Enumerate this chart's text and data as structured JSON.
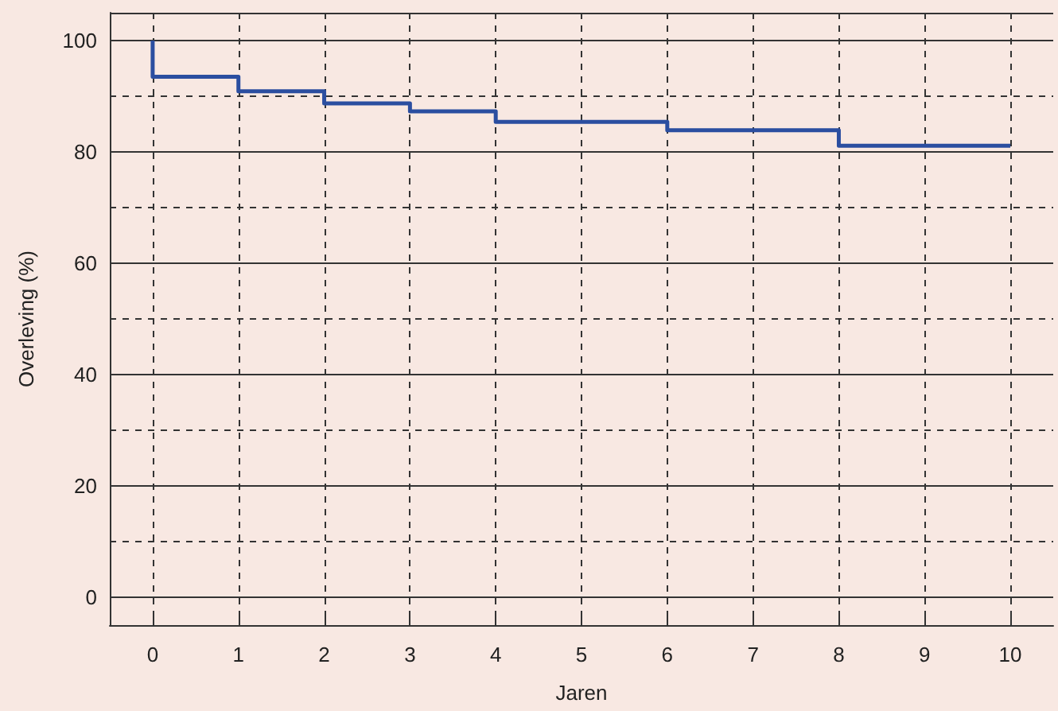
{
  "chart_data": {
    "type": "step",
    "xlabel": "Jaren",
    "ylabel": "Overleving (%)",
    "x": [
      0,
      0,
      1,
      2,
      3,
      4,
      6,
      8,
      10
    ],
    "values": [
      100,
      93.5,
      90.9,
      88.7,
      87.3,
      85.4,
      83.9,
      81.1,
      81.1
    ],
    "color": "#2b4ea0",
    "xlim": [
      -0.5,
      10.5
    ],
    "xticks": [
      0,
      1,
      2,
      3,
      4,
      5,
      6,
      7,
      8,
      9,
      10
    ],
    "ylim": [
      -5,
      105
    ],
    "yticks": [
      0,
      {
        "value": 10,
        "label": null
      },
      20,
      {
        "value": 30,
        "label": null
      },
      40,
      {
        "value": 50,
        "label": null
      },
      60,
      {
        "value": 70,
        "label": null
      },
      80,
      {
        "value": 90,
        "label": null
      },
      100
    ],
    "grid": true,
    "marker": "none",
    "line_style": "solid"
  }
}
